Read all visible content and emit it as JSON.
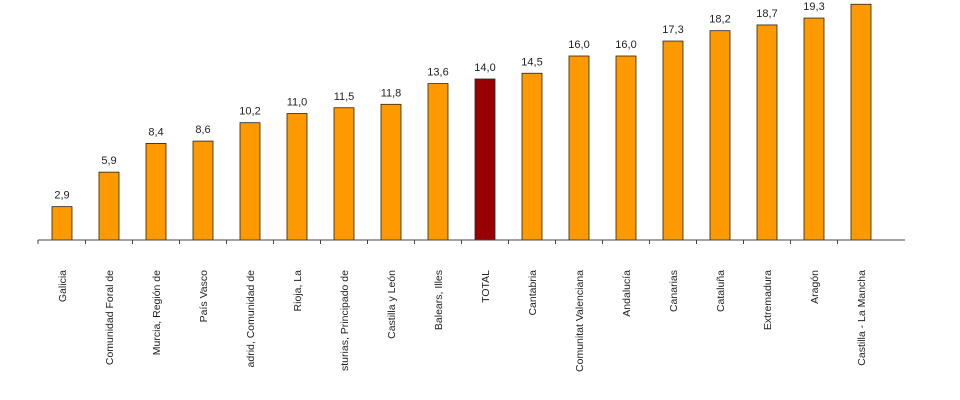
{
  "chart_data": {
    "type": "bar",
    "title": "",
    "xlabel": "",
    "ylabel": "",
    "ylim": [
      0,
      20
    ],
    "grid": false,
    "legend": "none",
    "categories": [
      "Galicia",
      "Comunidad Foral de",
      "Murcia, Región de",
      "País Vasco",
      "adrid, Comunidad de",
      "Rioja, La",
      "sturias, Principado de",
      "Castilla y León",
      "Balears, Illes",
      "TOTAL",
      "Cantabria",
      "Comunitat Valenciana",
      "Andalucía",
      "Canarias",
      "Cataluña",
      "Extremadura",
      "Aragón",
      "Castilla - La Mancha"
    ],
    "values": [
      2.9,
      5.9,
      8.4,
      8.6,
      10.2,
      11.0,
      11.5,
      11.8,
      13.6,
      14.0,
      14.5,
      16.0,
      16.0,
      17.3,
      18.2,
      18.7,
      19.3,
      20.5
    ],
    "value_labels": [
      "2,9",
      "5,9",
      "8,4",
      "8,6",
      "10,2",
      "11,0",
      "11,5",
      "11,8",
      "13,6",
      "14,0",
      "14,5",
      "16,0",
      "16,0",
      "17,3",
      "18,2",
      "18,7",
      "19,3",
      ""
    ],
    "highlight_category": "TOTAL",
    "colors": {
      "bar": "#FF9900",
      "highlight": "#990000",
      "outline": "#222222",
      "axis": "#444444"
    }
  }
}
